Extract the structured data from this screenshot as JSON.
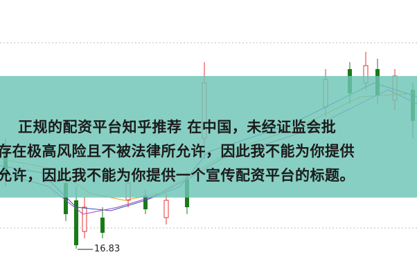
{
  "overlay": {
    "lines": [
      "正规的配资平台知乎推荐 在中国，未经证监会批",
      "存在极高风险且不被法律所允许，因此我不能为你提供",
      "允许，因此我不能为你提供一个宣传配资平台的标题。"
    ]
  },
  "price_label": "16.83"
}
